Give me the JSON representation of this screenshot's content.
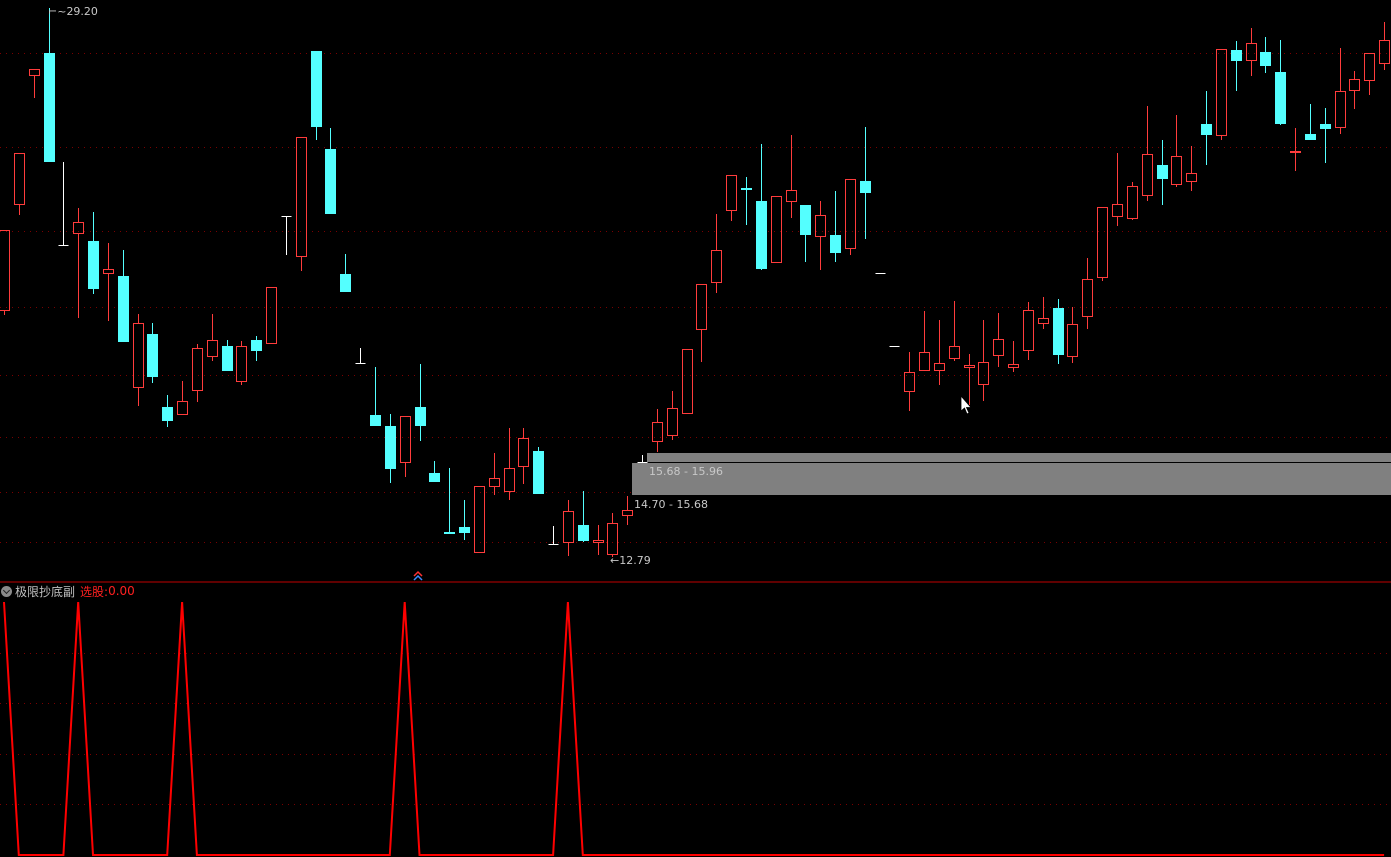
{
  "chart_data": [
    {
      "type": "candlestick",
      "ylim": [
        12.07,
        29.44
      ],
      "scale": "price",
      "grid": true,
      "colors": {
        "up": "#ff3c3c",
        "down": "#54ffff",
        "flat": "#ffffff",
        "grid": "#7a0000"
      },
      "columns": [
        "open",
        "high",
        "low",
        "close"
      ],
      "candles": [
        [
          20.17,
          22.57,
          20.02,
          22.57
        ],
        [
          23.34,
          24.87,
          23.01,
          24.87
        ],
        [
          27.2,
          27.38,
          26.51,
          27.38
        ],
        [
          27.86,
          29.2,
          24.6,
          24.6
        ],
        [
          22.12,
          24.6,
          22.12,
          22.12
        ],
        [
          22.48,
          23.22,
          19.94,
          22.8
        ],
        [
          22.24,
          23.1,
          20.65,
          20.8
        ],
        [
          21.28,
          22.18,
          19.85,
          21.4
        ],
        [
          21.19,
          21.97,
          19.22,
          19.22
        ],
        [
          17.87,
          20.05,
          17.31,
          19.79
        ],
        [
          19.46,
          19.79,
          17.99,
          18.17
        ],
        [
          17.28,
          17.63,
          16.68,
          16.86
        ],
        [
          17.07,
          18.05,
          17.07,
          17.45
        ],
        [
          17.78,
          19.16,
          17.42,
          19.04
        ],
        [
          18.8,
          20.05,
          18.65,
          19.28
        ],
        [
          19.1,
          19.28,
          18.35,
          18.35
        ],
        [
          18.05,
          19.25,
          17.93,
          19.1
        ],
        [
          19.28,
          19.4,
          18.65,
          18.95
        ],
        [
          19.19,
          20.86,
          19.19,
          20.86
        ],
        [
          22.98,
          22.98,
          21.82,
          22.98
        ],
        [
          21.79,
          25.35,
          21.34,
          25.35
        ],
        [
          27.92,
          27.92,
          25.26,
          25.64
        ],
        [
          24.99,
          25.61,
          23.04,
          23.04
        ],
        [
          21.25,
          21.85,
          20.71,
          20.71
        ],
        [
          18.59,
          19.04,
          18.59,
          18.59
        ],
        [
          17.04,
          18.47,
          16.71,
          16.71
        ],
        [
          16.71,
          17.07,
          15.0,
          15.42
        ],
        [
          15.63,
          17.01,
          15.18,
          17.01
        ],
        [
          17.28,
          18.56,
          16.26,
          16.71
        ],
        [
          15.3,
          15.66,
          15.03,
          15.03
        ],
        [
          13.52,
          15.45,
          13.51,
          13.51
        ],
        [
          13.69,
          14.5,
          13.3,
          13.51
        ],
        [
          12.94,
          14.91,
          12.94,
          14.91
        ],
        [
          14.91,
          15.9,
          14.64,
          15.15
        ],
        [
          14.76,
          16.65,
          14.5,
          15.45
        ],
        [
          15.51,
          16.65,
          14.97,
          16.35
        ],
        [
          15.96,
          16.08,
          14.67,
          14.67
        ],
        [
          13.18,
          13.72,
          13.18,
          13.18
        ],
        [
          13.24,
          14.5,
          12.82,
          14.17
        ],
        [
          13.75,
          14.76,
          13.24,
          13.27
        ],
        [
          13.24,
          13.75,
          12.85,
          13.3
        ],
        [
          12.88,
          14.11,
          12.79,
          13.81
        ],
        [
          14.05,
          14.61,
          13.75,
          14.2
        ],
        [
          15.63,
          15.84,
          15.63,
          15.63
        ],
        [
          16.26,
          17.22,
          15.93,
          16.83
        ],
        [
          16.44,
          17.75,
          16.29,
          17.25
        ],
        [
          17.1,
          19.01,
          17.1,
          19.01
        ],
        [
          19.61,
          20.95,
          18.62,
          20.95
        ],
        [
          21.01,
          23.04,
          20.68,
          21.97
        ],
        [
          23.16,
          24.21,
          22.83,
          24.21
        ],
        [
          23.83,
          24.15,
          22.72,
          23.82
        ],
        [
          23.43,
          25.14,
          21.37,
          21.4
        ],
        [
          21.61,
          23.58,
          21.61,
          23.58
        ],
        [
          23.43,
          25.41,
          22.92,
          23.76
        ],
        [
          23.31,
          23.31,
          21.61,
          22.42
        ],
        [
          22.39,
          23.43,
          21.37,
          23.01
        ],
        [
          22.42,
          23.73,
          21.61,
          21.88
        ],
        [
          22.03,
          24.09,
          21.82,
          24.09
        ],
        [
          24.03,
          25.64,
          22.3,
          23.67
        ],
        [
          21.28,
          21.28,
          21.28,
          21.28
        ],
        [
          19.1,
          19.1,
          19.1,
          19.1
        ],
        [
          17.75,
          18.92,
          17.16,
          18.32
        ],
        [
          18.38,
          20.14,
          18.38,
          18.92
        ],
        [
          18.38,
          19.88,
          17.93,
          18.59
        ],
        [
          18.74,
          20.44,
          18.65,
          19.1
        ],
        [
          18.47,
          18.86,
          17.33,
          18.53
        ],
        [
          17.96,
          19.88,
          17.45,
          18.62
        ],
        [
          18.83,
          20.08,
          18.47,
          19.31
        ],
        [
          18.47,
          19.25,
          18.32,
          18.56
        ],
        [
          18.98,
          20.41,
          18.68,
          20.17
        ],
        [
          19.79,
          20.56,
          19.61,
          19.94
        ],
        [
          20.23,
          20.5,
          18.56,
          18.83
        ],
        [
          18.8,
          20.26,
          18.59,
          19.76
        ],
        [
          19.99,
          21.73,
          19.61,
          21.1
        ],
        [
          21.16,
          23.25,
          21.04,
          23.25
        ],
        [
          22.98,
          24.87,
          22.69,
          23.34
        ],
        [
          22.92,
          24.0,
          22.86,
          23.88
        ],
        [
          23.61,
          26.27,
          23.43,
          24.84
        ],
        [
          24.51,
          25.26,
          23.31,
          24.09
        ],
        [
          23.94,
          26.0,
          23.85,
          24.78
        ],
        [
          24.03,
          25.08,
          23.73,
          24.27
        ],
        [
          25.73,
          26.72,
          24.51,
          25.41
        ],
        [
          25.41,
          27.98,
          25.26,
          27.98
        ],
        [
          27.95,
          28.21,
          26.72,
          27.62
        ],
        [
          27.65,
          28.6,
          27.17,
          28.15
        ],
        [
          27.89,
          28.33,
          27.26,
          27.47
        ],
        [
          27.29,
          28.24,
          25.7,
          25.73
        ],
        [
          24.92,
          25.61,
          24.33,
          24.93
        ],
        [
          25.44,
          26.33,
          25.26,
          25.26
        ],
        [
          25.73,
          26.21,
          24.57,
          25.58
        ],
        [
          25.64,
          28.01,
          25.44,
          26.72
        ],
        [
          26.75,
          27.32,
          26.18,
          27.08
        ],
        [
          27.05,
          27.86,
          26.6,
          27.86
        ],
        [
          27.56,
          28.78,
          27.35,
          28.24
        ]
      ],
      "annotations": {
        "high_label": "29.20",
        "low_label": "12.79",
        "range_upper": "15.68 - 15.96",
        "range_lower": "14.70 - 15.68"
      }
    },
    {
      "type": "line",
      "title": "极限抄底副",
      "value_label": "选股:",
      "value": "0.00",
      "ylim": [
        0,
        1
      ],
      "color": "#ff0000",
      "values": [
        1,
        0,
        0,
        0,
        0,
        1,
        0,
        0,
        0,
        0,
        0,
        0,
        1,
        0,
        0,
        0,
        0,
        0,
        0,
        0,
        0,
        0,
        0,
        0,
        0,
        0,
        0,
        1,
        0,
        0,
        0,
        0,
        0,
        0,
        0,
        0,
        0,
        0,
        1,
        0,
        0,
        0,
        0,
        0,
        0,
        0,
        0,
        0,
        0,
        0,
        0,
        0,
        0,
        0,
        0,
        0,
        0,
        0,
        0,
        0,
        0,
        0,
        0,
        0,
        0,
        0,
        0,
        0,
        0,
        0,
        0,
        0,
        0,
        0,
        0,
        0,
        0,
        0,
        0,
        0,
        0,
        0,
        0,
        0,
        0,
        0,
        0,
        0,
        0,
        0,
        0,
        0,
        0,
        0
      ]
    }
  ]
}
